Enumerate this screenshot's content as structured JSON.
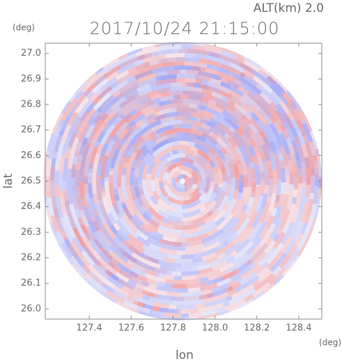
{
  "chart_data": {
    "type": "radar-ppi",
    "title": "2017/10/24 21:15:00",
    "altitude_label": "ALT(km)  2.0",
    "x_label": "lon",
    "y_label": "lat",
    "x_unit": "(deg)",
    "y_unit": "(deg)",
    "xlim": [
      127.19,
      128.51
    ],
    "ylim": [
      25.96,
      27.04
    ],
    "xticks": [
      127.4,
      127.6,
      127.8,
      {
        "value": 128.0,
        "label": "128.0"
      },
      128.2,
      128.4
    ],
    "yticks": [
      {
        "value": 26.0,
        "label": "26.0"
      },
      26.1,
      26.2,
      26.3,
      26.4,
      26.5,
      26.6,
      26.7,
      26.8,
      26.9,
      {
        "value": 27.0,
        "label": "27.0"
      }
    ]
  }
}
